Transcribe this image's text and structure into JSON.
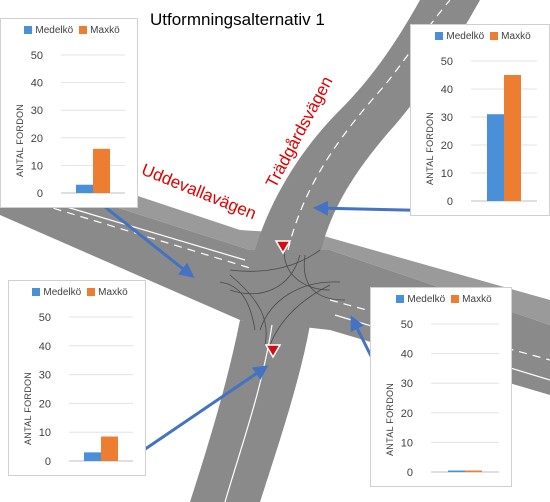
{
  "title": "Utformningsalternativ  1",
  "roads": {
    "uddevalla": "Uddevallavägen",
    "tradgards": "Trädgårdsvägen"
  },
  "colors": {
    "medel": "#4a90d9",
    "max": "#ed7d31",
    "arrow": "#4472c4",
    "road_label": "#e00000"
  },
  "chart_data": [
    {
      "type": "bar",
      "location": "top-left",
      "series": [
        {
          "name": "Medelkö",
          "values": [
            3
          ]
        },
        {
          "name": "Maxkö",
          "values": [
            16
          ]
        }
      ],
      "ylabel": "ANTAL FORDON",
      "ylim": [
        0,
        50
      ],
      "yticks": [
        0,
        10,
        20,
        30,
        40,
        50
      ]
    },
    {
      "type": "bar",
      "location": "top-right",
      "series": [
        {
          "name": "Medelkö",
          "values": [
            31
          ]
        },
        {
          "name": "Maxkö",
          "values": [
            45
          ]
        }
      ],
      "ylabel": "ANTAL FORDON",
      "ylim": [
        0,
        50
      ],
      "yticks": [
        0,
        10,
        20,
        30,
        40,
        50
      ]
    },
    {
      "type": "bar",
      "location": "bottom-left",
      "series": [
        {
          "name": "Medelkö",
          "values": [
            3
          ]
        },
        {
          "name": "Maxkö",
          "values": [
            8.5
          ]
        }
      ],
      "ylabel": "ANTAL FORDON",
      "ylim": [
        0,
        50
      ],
      "yticks": [
        0,
        10,
        20,
        30,
        40,
        50
      ]
    },
    {
      "type": "bar",
      "location": "bottom-right",
      "series": [
        {
          "name": "Medelkö",
          "values": [
            0.5
          ]
        },
        {
          "name": "Maxkö",
          "values": [
            0.5
          ]
        }
      ],
      "ylabel": "ANTAL FORDON",
      "ylim": [
        0,
        50
      ],
      "yticks": [
        0,
        10,
        20,
        30,
        40,
        50
      ]
    }
  ]
}
